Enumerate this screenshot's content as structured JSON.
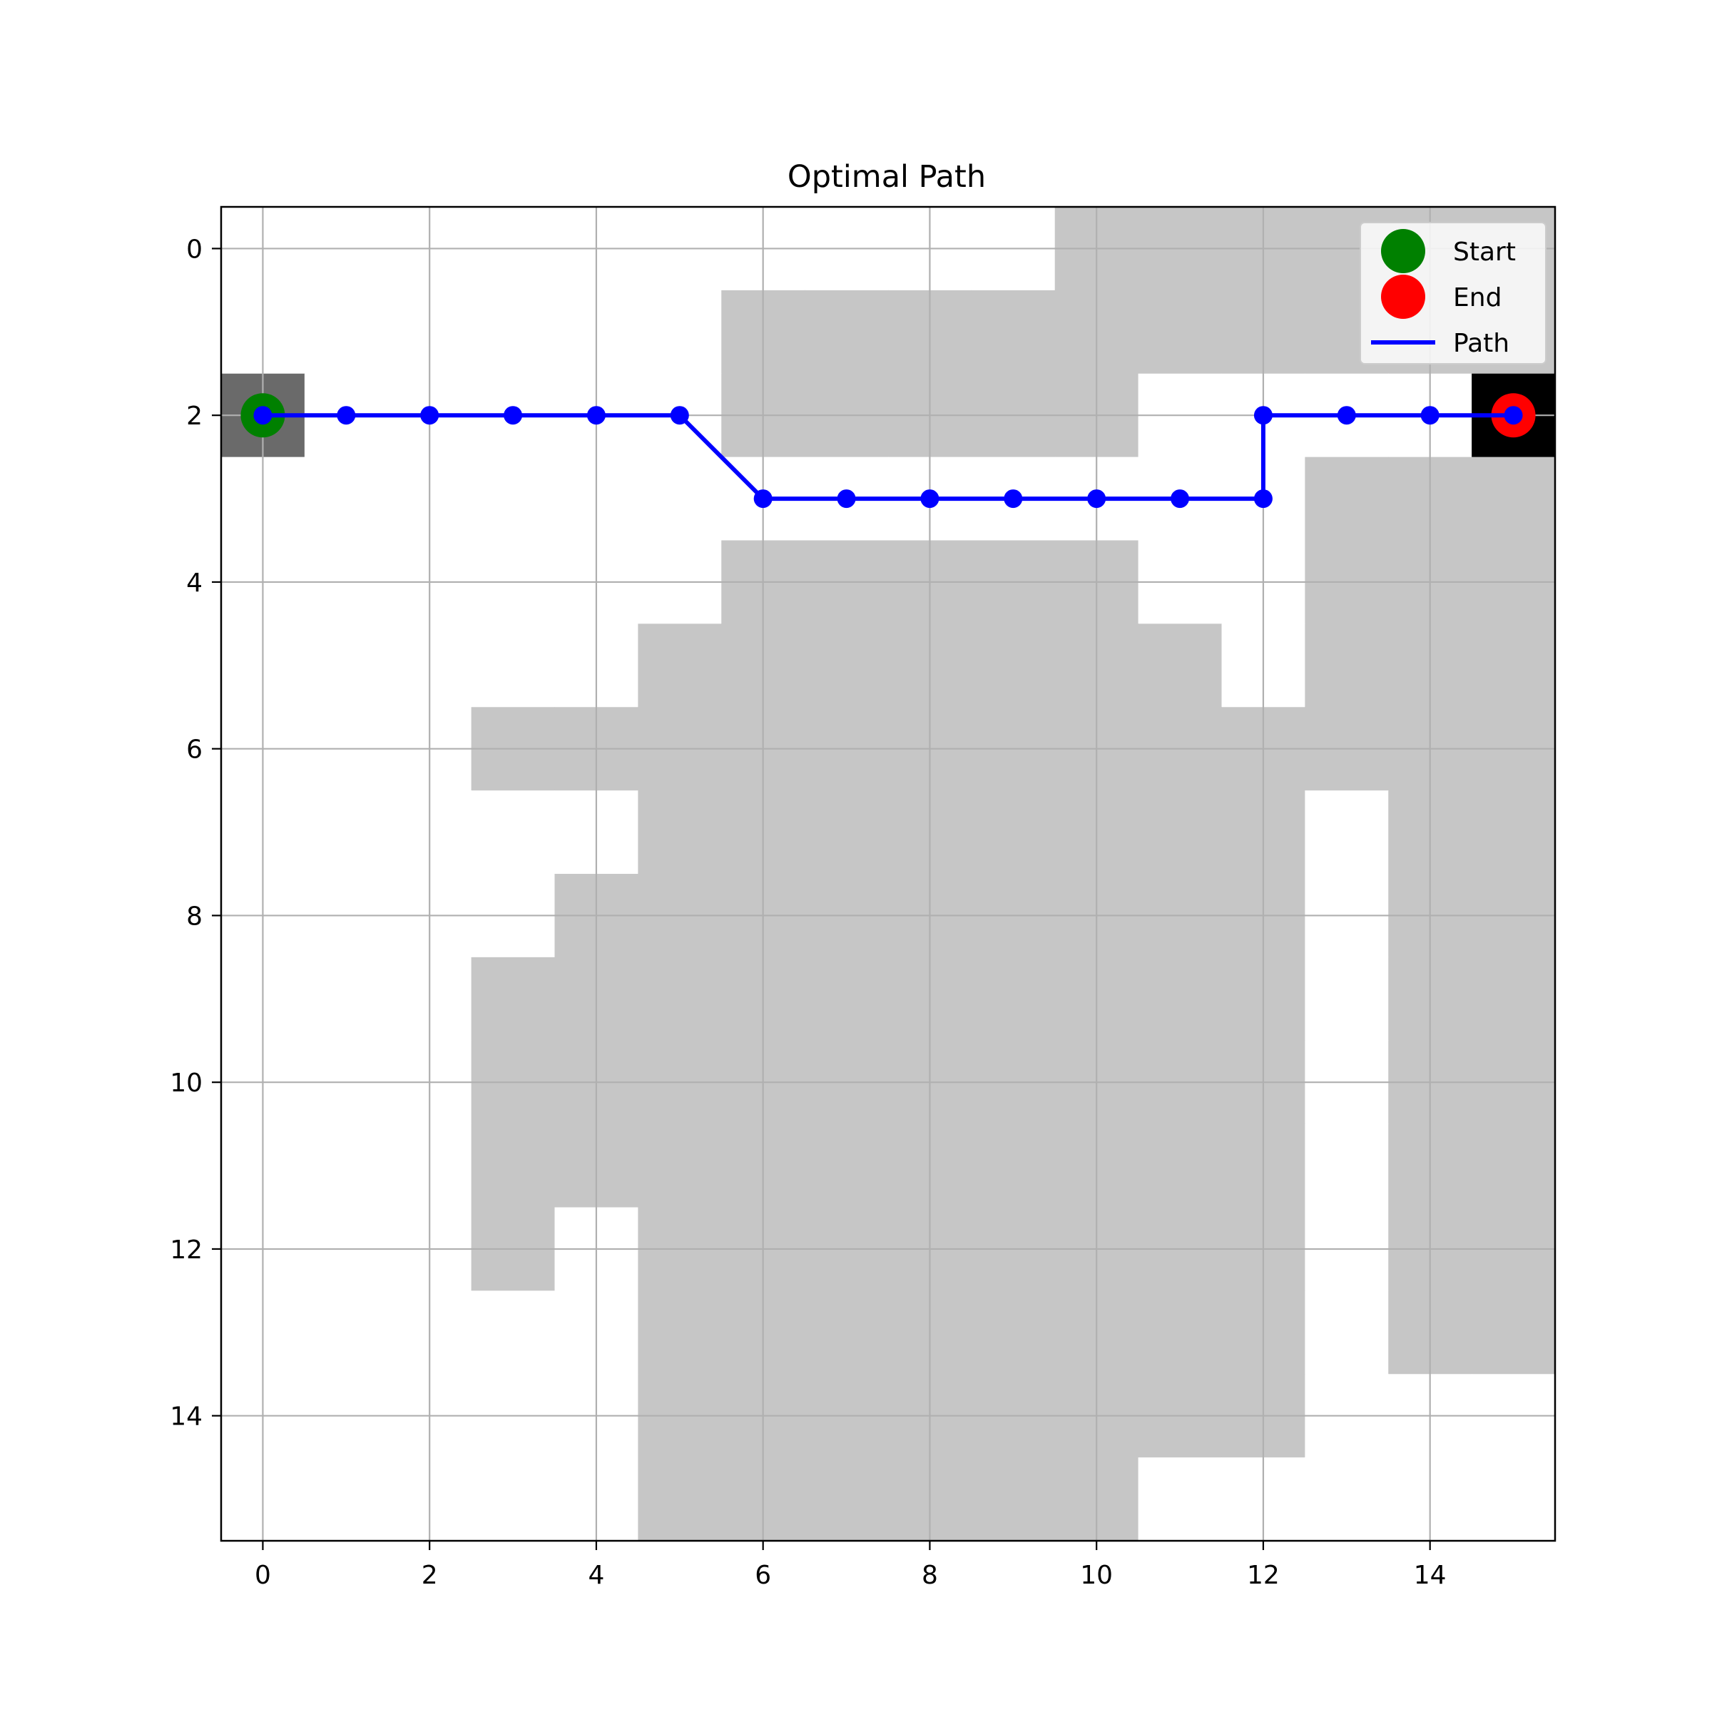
{
  "chart_data": {
    "type": "heatmap",
    "title": "Optimal Path",
    "xlabel": "",
    "ylabel": "",
    "xlim": [
      -0.5,
      15.5
    ],
    "ylim": [
      15.5,
      -0.5
    ],
    "y_axis_inverted": true,
    "x_ticks": [
      0,
      2,
      4,
      6,
      8,
      10,
      12,
      14
    ],
    "y_ticks": [
      0,
      2,
      4,
      6,
      8,
      10,
      12,
      14
    ],
    "grid": true,
    "legend_position": "upper right",
    "colors": {
      "obstacle": "#c6c6c6",
      "free": "#ffffff",
      "start_cell": "#6a6a6a",
      "end_cell": "#000000",
      "start_marker": "#008000",
      "end_marker": "#ff0000",
      "path": "#0000ff",
      "grid": "#b0b0b0"
    },
    "grid_values": [
      [
        0,
        0,
        0,
        0,
        0,
        0,
        0,
        0,
        0,
        0,
        1,
        1,
        1,
        1,
        1,
        1
      ],
      [
        0,
        0,
        0,
        0,
        0,
        0,
        1,
        1,
        1,
        1,
        1,
        1,
        1,
        1,
        1,
        1
      ],
      [
        0,
        0,
        0,
        0,
        0,
        0,
        1,
        1,
        1,
        1,
        1,
        0,
        0,
        0,
        0,
        0
      ],
      [
        0,
        0,
        0,
        0,
        0,
        0,
        0,
        0,
        0,
        0,
        0,
        0,
        0,
        1,
        1,
        1
      ],
      [
        0,
        0,
        0,
        0,
        0,
        0,
        1,
        1,
        1,
        1,
        1,
        0,
        0,
        1,
        1,
        1
      ],
      [
        0,
        0,
        0,
        0,
        0,
        1,
        1,
        1,
        1,
        1,
        1,
        1,
        0,
        1,
        1,
        1
      ],
      [
        0,
        0,
        0,
        1,
        1,
        1,
        1,
        1,
        1,
        1,
        1,
        1,
        1,
        1,
        1,
        1
      ],
      [
        0,
        0,
        0,
        0,
        0,
        1,
        1,
        1,
        1,
        1,
        1,
        1,
        1,
        0,
        1,
        1
      ],
      [
        0,
        0,
        0,
        0,
        1,
        1,
        1,
        1,
        1,
        1,
        1,
        1,
        1,
        0,
        1,
        1
      ],
      [
        0,
        0,
        0,
        1,
        1,
        1,
        1,
        1,
        1,
        1,
        1,
        1,
        1,
        0,
        1,
        1
      ],
      [
        0,
        0,
        0,
        1,
        1,
        1,
        1,
        1,
        1,
        1,
        1,
        1,
        1,
        0,
        1,
        1
      ],
      [
        0,
        0,
        0,
        1,
        1,
        1,
        1,
        1,
        1,
        1,
        1,
        1,
        1,
        0,
        1,
        1
      ],
      [
        0,
        0,
        0,
        1,
        0,
        1,
        1,
        1,
        1,
        1,
        1,
        1,
        1,
        0,
        1,
        1
      ],
      [
        0,
        0,
        0,
        0,
        0,
        1,
        1,
        1,
        1,
        1,
        1,
        1,
        1,
        0,
        1,
        1
      ],
      [
        0,
        0,
        0,
        0,
        0,
        1,
        1,
        1,
        1,
        1,
        1,
        1,
        1,
        0,
        0,
        0
      ],
      [
        0,
        0,
        0,
        0,
        0,
        1,
        1,
        1,
        1,
        1,
        1,
        0,
        0,
        0,
        0,
        0
      ]
    ],
    "start": {
      "x": 0,
      "y": 2
    },
    "end": {
      "x": 15,
      "y": 2
    },
    "path": [
      {
        "x": 0,
        "y": 2
      },
      {
        "x": 1,
        "y": 2
      },
      {
        "x": 2,
        "y": 2
      },
      {
        "x": 3,
        "y": 2
      },
      {
        "x": 4,
        "y": 2
      },
      {
        "x": 5,
        "y": 2
      },
      {
        "x": 6,
        "y": 3
      },
      {
        "x": 7,
        "y": 3
      },
      {
        "x": 8,
        "y": 3
      },
      {
        "x": 9,
        "y": 3
      },
      {
        "x": 10,
        "y": 3
      },
      {
        "x": 11,
        "y": 3
      },
      {
        "x": 12,
        "y": 3
      },
      {
        "x": 12,
        "y": 2
      },
      {
        "x": 13,
        "y": 2
      },
      {
        "x": 14,
        "y": 2
      },
      {
        "x": 15,
        "y": 2
      }
    ],
    "legend": [
      {
        "label": "Start",
        "kind": "marker",
        "color": "#008000"
      },
      {
        "label": "End",
        "kind": "marker",
        "color": "#ff0000"
      },
      {
        "label": "Path",
        "kind": "line",
        "color": "#0000ff"
      }
    ]
  }
}
